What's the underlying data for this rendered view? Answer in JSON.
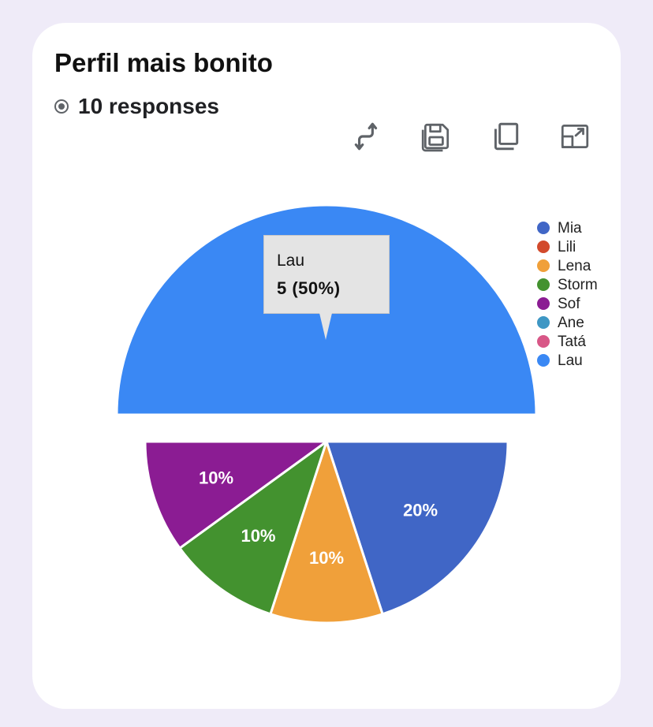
{
  "card": {
    "title": "Perfil mais bonito",
    "responses": "10 responses"
  },
  "toolbar": {
    "icons": [
      "swap-icon",
      "save-icon",
      "copy-icon",
      "expand-icon"
    ]
  },
  "tooltip": {
    "name": "Lau",
    "value": "5 (50%)"
  },
  "chart_data": {
    "type": "pie",
    "title": "Perfil mais bonito",
    "slices": [
      {
        "label": "Mia",
        "value": 2,
        "percent": "20%",
        "color": "#4066c6"
      },
      {
        "label": "Lili",
        "value": 0,
        "percent": "0%",
        "color": "#d24a2c"
      },
      {
        "label": "Lena",
        "value": 1,
        "percent": "10%",
        "color": "#f0a03a"
      },
      {
        "label": "Storm",
        "value": 1,
        "percent": "10%",
        "color": "#43922f"
      },
      {
        "label": "Sof",
        "value": 1,
        "percent": "10%",
        "color": "#8b1c93"
      },
      {
        "label": "Ane",
        "value": 0,
        "percent": "0%",
        "color": "#3e97c4"
      },
      {
        "label": "Tatá",
        "value": 0,
        "percent": "0%",
        "color": "#d85787"
      },
      {
        "label": "Lau",
        "value": 5,
        "percent": "50%",
        "color": "#3a88f4"
      }
    ],
    "highlighted": "Lau",
    "legend_position": "right"
  }
}
